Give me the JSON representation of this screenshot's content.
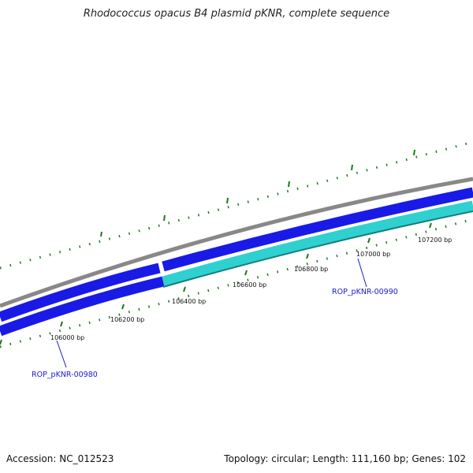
{
  "title": "Rhodococcus opacus B4 plasmid pKNR, complete sequence",
  "footer": {
    "accession": "Accession: NC_012523",
    "summary": "Topology: circular; Length: 111,160 bp; Genes: 102"
  },
  "colors": {
    "backbone": "#888888",
    "forward_gene": "#1a1ae6",
    "reverse_gene_selected": "#30d0d0",
    "reverse_gene": "#1a1ae6",
    "tick": "#1a7a1a",
    "gene_label": "#1a1acc"
  },
  "tick_labels": [
    {
      "bp": 106000,
      "text": "106000 bp"
    },
    {
      "bp": 106200,
      "text": "106200 bp"
    },
    {
      "bp": 106400,
      "text": "106400 bp"
    },
    {
      "bp": 106600,
      "text": "106600 bp"
    },
    {
      "bp": 106800,
      "text": "106800 bp"
    },
    {
      "bp": 107000,
      "text": "107000 bp"
    },
    {
      "bp": 107200,
      "text": "107200 bp"
    }
  ],
  "genes": [
    {
      "name": "ROP_pKNR-00980",
      "strand": "reverse",
      "selected": false
    },
    {
      "name": "ROP_pKNR-00990",
      "strand": "reverse",
      "selected": true
    }
  ]
}
